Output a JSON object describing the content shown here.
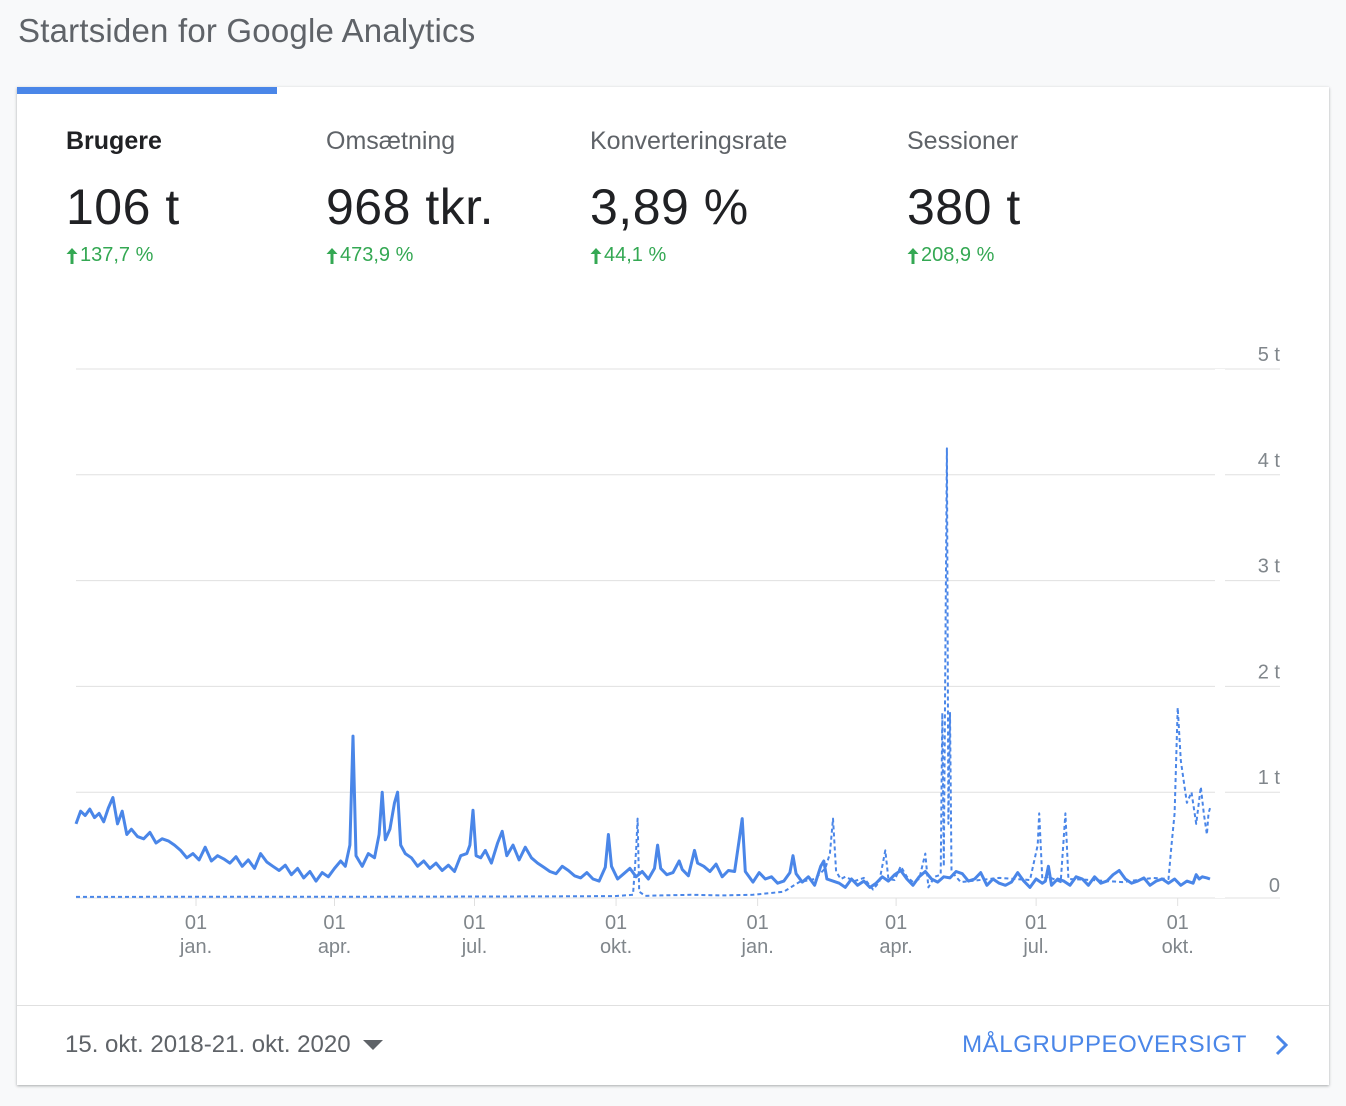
{
  "page": {
    "title": "Startsiden for Google Analytics"
  },
  "metrics": [
    {
      "label": "Brugere",
      "value": "106 t",
      "change": "137,7 %",
      "active": true
    },
    {
      "label": "Omsætning",
      "value": "968 tkr.",
      "change": "473,9 %",
      "active": false
    },
    {
      "label": "Konverteringsrate",
      "value": "3,89 %",
      "change": "44,1 %",
      "active": false
    },
    {
      "label": "Sessioner",
      "value": "380 t",
      "change": "208,9 %",
      "active": false
    }
  ],
  "colors": {
    "accent": "#4a86e8",
    "positive": "#34a853",
    "grid": "#e0e0e0",
    "text_muted": "#5f6368"
  },
  "footer": {
    "date_range": "15. okt. 2018-21. okt. 2020",
    "audience_link": "MÅLGRUPPEOVERSIGT"
  },
  "chart_data": {
    "type": "line",
    "title": "",
    "xlabel": "",
    "ylabel": "",
    "ylim": [
      0,
      5000
    ],
    "y_ticks": [
      0,
      1000,
      2000,
      3000,
      4000,
      5000
    ],
    "y_tick_labels": [
      "0",
      "1 t",
      "2 t",
      "3 t",
      "4 t",
      "5 t"
    ],
    "x_tick_days": [
      78,
      168,
      259,
      351,
      443,
      533,
      624,
      716
    ],
    "x_tick_labels": [
      [
        "01",
        "jan."
      ],
      [
        "01",
        "apr."
      ],
      [
        "01",
        "jul."
      ],
      [
        "01",
        "okt."
      ],
      [
        "01",
        "jan."
      ],
      [
        "01",
        "apr."
      ],
      [
        "01",
        "jul."
      ],
      [
        "01",
        "okt."
      ]
    ],
    "x_range_days": [
      0,
      737
    ],
    "grid": true,
    "series": [
      {
        "style": "solid",
        "points": [
          [
            0,
            700
          ],
          [
            3,
            820
          ],
          [
            6,
            780
          ],
          [
            9,
            840
          ],
          [
            12,
            760
          ],
          [
            15,
            800
          ],
          [
            18,
            720
          ],
          [
            21,
            850
          ],
          [
            24,
            950
          ],
          [
            27,
            700
          ],
          [
            30,
            820
          ],
          [
            33,
            600
          ],
          [
            36,
            650
          ],
          [
            40,
            580
          ],
          [
            44,
            560
          ],
          [
            48,
            620
          ],
          [
            52,
            520
          ],
          [
            56,
            560
          ],
          [
            60,
            540
          ],
          [
            64,
            500
          ],
          [
            68,
            450
          ],
          [
            72,
            380
          ],
          [
            76,
            420
          ],
          [
            80,
            360
          ],
          [
            84,
            480
          ],
          [
            88,
            350
          ],
          [
            92,
            400
          ],
          [
            96,
            370
          ],
          [
            100,
            330
          ],
          [
            104,
            390
          ],
          [
            108,
            300
          ],
          [
            112,
            360
          ],
          [
            116,
            280
          ],
          [
            120,
            420
          ],
          [
            124,
            340
          ],
          [
            128,
            300
          ],
          [
            132,
            260
          ],
          [
            136,
            310
          ],
          [
            140,
            220
          ],
          [
            144,
            280
          ],
          [
            148,
            190
          ],
          [
            152,
            250
          ],
          [
            156,
            160
          ],
          [
            160,
            240
          ],
          [
            164,
            200
          ],
          [
            168,
            280
          ],
          [
            172,
            350
          ],
          [
            175,
            300
          ],
          [
            178,
            500
          ],
          [
            180,
            1530
          ],
          [
            182,
            400
          ],
          [
            186,
            300
          ],
          [
            190,
            420
          ],
          [
            194,
            380
          ],
          [
            197,
            600
          ],
          [
            199,
            1000
          ],
          [
            201,
            550
          ],
          [
            204,
            650
          ],
          [
            207,
            900
          ],
          [
            209,
            1000
          ],
          [
            211,
            500
          ],
          [
            214,
            420
          ],
          [
            218,
            380
          ],
          [
            222,
            300
          ],
          [
            226,
            350
          ],
          [
            230,
            280
          ],
          [
            234,
            330
          ],
          [
            238,
            260
          ],
          [
            242,
            310
          ],
          [
            246,
            250
          ],
          [
            250,
            400
          ],
          [
            254,
            420
          ],
          [
            256,
            500
          ],
          [
            258,
            830
          ],
          [
            260,
            400
          ],
          [
            263,
            380
          ],
          [
            266,
            450
          ],
          [
            270,
            330
          ],
          [
            274,
            520
          ],
          [
            277,
            630
          ],
          [
            280,
            400
          ],
          [
            284,
            500
          ],
          [
            288,
            360
          ],
          [
            292,
            480
          ],
          [
            296,
            380
          ],
          [
            300,
            330
          ],
          [
            304,
            290
          ],
          [
            308,
            250
          ],
          [
            312,
            230
          ],
          [
            316,
            300
          ],
          [
            320,
            260
          ],
          [
            324,
            210
          ],
          [
            328,
            190
          ],
          [
            332,
            240
          ],
          [
            336,
            180
          ],
          [
            340,
            160
          ],
          [
            344,
            290
          ],
          [
            346,
            600
          ],
          [
            348,
            300
          ],
          [
            352,
            180
          ],
          [
            356,
            230
          ],
          [
            360,
            280
          ],
          [
            364,
            200
          ],
          [
            368,
            250
          ],
          [
            372,
            180
          ],
          [
            376,
            280
          ],
          [
            378,
            500
          ],
          [
            380,
            280
          ],
          [
            384,
            220
          ],
          [
            388,
            240
          ],
          [
            392,
            350
          ],
          [
            394,
            270
          ],
          [
            398,
            210
          ],
          [
            402,
            450
          ],
          [
            404,
            330
          ],
          [
            408,
            300
          ],
          [
            412,
            250
          ],
          [
            416,
            320
          ],
          [
            420,
            200
          ],
          [
            424,
            260
          ],
          [
            428,
            250
          ],
          [
            431,
            550
          ],
          [
            433,
            750
          ],
          [
            435,
            250
          ],
          [
            440,
            150
          ],
          [
            444,
            240
          ],
          [
            448,
            180
          ],
          [
            452,
            200
          ],
          [
            456,
            140
          ],
          [
            460,
            160
          ],
          [
            464,
            240
          ],
          [
            466,
            400
          ],
          [
            468,
            230
          ],
          [
            472,
            150
          ],
          [
            476,
            200
          ],
          [
            480,
            120
          ],
          [
            484,
            300
          ],
          [
            486,
            350
          ],
          [
            488,
            180
          ],
          [
            492,
            160
          ],
          [
            496,
            140
          ],
          [
            500,
            100
          ],
          [
            504,
            180
          ],
          [
            508,
            120
          ],
          [
            512,
            160
          ],
          [
            516,
            100
          ],
          [
            520,
            140
          ],
          [
            524,
            200
          ],
          [
            528,
            160
          ],
          [
            532,
            220
          ],
          [
            536,
            260
          ],
          [
            540,
            180
          ],
          [
            544,
            120
          ],
          [
            548,
            200
          ],
          [
            552,
            250
          ],
          [
            556,
            180
          ],
          [
            560,
            150
          ],
          [
            564,
            200
          ],
          [
            568,
            190
          ],
          [
            572,
            250
          ],
          [
            576,
            230
          ],
          [
            580,
            160
          ],
          [
            584,
            180
          ],
          [
            588,
            240
          ],
          [
            592,
            120
          ],
          [
            596,
            180
          ],
          [
            600,
            140
          ],
          [
            604,
            120
          ],
          [
            608,
            150
          ],
          [
            612,
            240
          ],
          [
            616,
            160
          ],
          [
            620,
            100
          ],
          [
            624,
            180
          ],
          [
            628,
            140
          ],
          [
            630,
            160
          ],
          [
            632,
            300
          ],
          [
            634,
            120
          ],
          [
            638,
            180
          ],
          [
            642,
            160
          ],
          [
            646,
            120
          ],
          [
            650,
            200
          ],
          [
            654,
            180
          ],
          [
            658,
            120
          ],
          [
            662,
            200
          ],
          [
            666,
            140
          ],
          [
            670,
            160
          ],
          [
            674,
            220
          ],
          [
            678,
            260
          ],
          [
            682,
            180
          ],
          [
            686,
            140
          ],
          [
            690,
            160
          ],
          [
            694,
            190
          ],
          [
            698,
            120
          ],
          [
            702,
            160
          ],
          [
            706,
            180
          ],
          [
            710,
            140
          ],
          [
            714,
            180
          ],
          [
            718,
            120
          ],
          [
            722,
            160
          ],
          [
            726,
            140
          ],
          [
            728,
            220
          ],
          [
            730,
            180
          ],
          [
            732,
            200
          ],
          [
            735,
            190
          ],
          [
            737,
            180
          ]
        ]
      },
      {
        "style": "dashed",
        "points": [
          [
            0,
            10
          ],
          [
            100,
            12
          ],
          [
            200,
            12
          ],
          [
            300,
            15
          ],
          [
            350,
            18
          ],
          [
            362,
            30
          ],
          [
            364,
            450
          ],
          [
            365,
            750
          ],
          [
            366,
            60
          ],
          [
            370,
            20
          ],
          [
            380,
            25
          ],
          [
            400,
            30
          ],
          [
            420,
            25
          ],
          [
            440,
            30
          ],
          [
            460,
            60
          ],
          [
            470,
            150
          ],
          [
            480,
            180
          ],
          [
            487,
            280
          ],
          [
            490,
            420
          ],
          [
            492,
            750
          ],
          [
            494,
            250
          ],
          [
            497,
            180
          ],
          [
            500,
            200
          ],
          [
            506,
            160
          ],
          [
            512,
            190
          ],
          [
            518,
            80
          ],
          [
            522,
            150
          ],
          [
            526,
            450
          ],
          [
            528,
            180
          ],
          [
            532,
            170
          ],
          [
            536,
            300
          ],
          [
            540,
            200
          ],
          [
            544,
            150
          ],
          [
            548,
            180
          ],
          [
            552,
            420
          ],
          [
            554,
            100
          ],
          [
            558,
            200
          ],
          [
            562,
            220
          ],
          [
            563,
            1750
          ],
          [
            564,
            300
          ],
          [
            566,
            4250
          ],
          [
            567,
            700
          ],
          [
            568,
            1750
          ],
          [
            569,
            250
          ],
          [
            575,
            150
          ],
          [
            600,
            190
          ],
          [
            620,
            170
          ],
          [
            625,
            500
          ],
          [
            626,
            800
          ],
          [
            628,
            180
          ],
          [
            632,
            200
          ],
          [
            640,
            150
          ],
          [
            643,
            800
          ],
          [
            645,
            180
          ],
          [
            660,
            170
          ],
          [
            680,
            150
          ],
          [
            700,
            190
          ],
          [
            710,
            180
          ],
          [
            712,
            500
          ],
          [
            714,
            800
          ],
          [
            716,
            1800
          ],
          [
            718,
            1300
          ],
          [
            720,
            1100
          ],
          [
            722,
            900
          ],
          [
            725,
            1000
          ],
          [
            728,
            700
          ],
          [
            731,
            1050
          ],
          [
            733,
            800
          ],
          [
            735,
            600
          ],
          [
            736,
            800
          ],
          [
            737,
            850
          ]
        ]
      }
    ]
  }
}
